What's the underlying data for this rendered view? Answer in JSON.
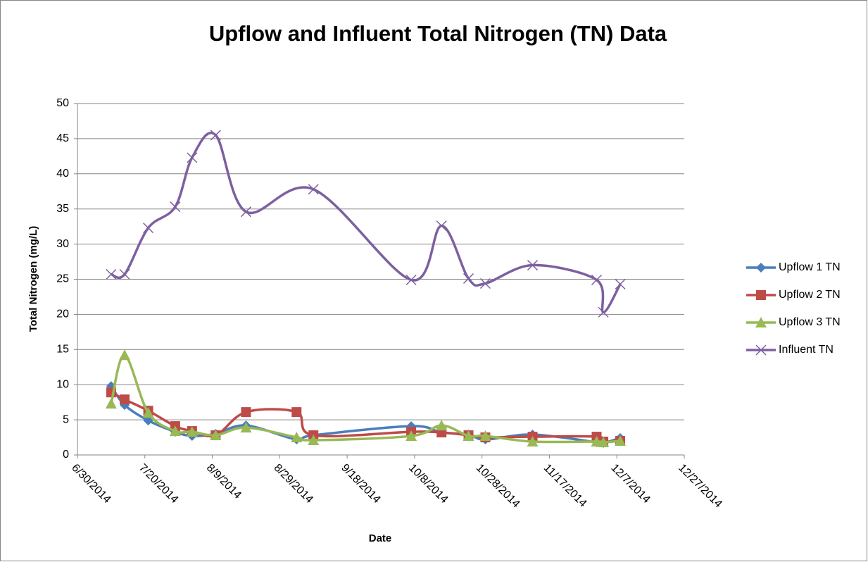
{
  "chart_data": {
    "type": "line",
    "title": "Upflow and Influent Total Nitrogen (TN) Data",
    "xlabel": "Date",
    "ylabel": "Total Nitrogen (mg/L)",
    "xlim": [
      "2014-06-30",
      "2014-12-27"
    ],
    "xticks": [
      {
        "value": "2014-06-30",
        "label": "6/30/2014"
      },
      {
        "value": "2014-07-20",
        "label": "7/20/2014"
      },
      {
        "value": "2014-08-09",
        "label": "8/9/2014"
      },
      {
        "value": "2014-08-29",
        "label": "8/29/2014"
      },
      {
        "value": "2014-09-18",
        "label": "9/18/2014"
      },
      {
        "value": "2014-10-08",
        "label": "10/8/2014"
      },
      {
        "value": "2014-10-28",
        "label": "10/28/2014"
      },
      {
        "value": "2014-11-17",
        "label": "11/17/2014"
      },
      {
        "value": "2014-12-07",
        "label": "12/7/2014"
      },
      {
        "value": "2014-12-27",
        "label": "12/27/2014"
      }
    ],
    "ylim": [
      0,
      50
    ],
    "yticks": [
      0,
      5,
      10,
      15,
      20,
      25,
      30,
      35,
      40,
      45,
      50
    ],
    "grid": true,
    "legend": "right",
    "smooth": true,
    "series": [
      {
        "name": "Upflow 1 TN",
        "color": "#4a7ebb",
        "marker": "diamond",
        "x": [
          "2014-07-10",
          "2014-07-14",
          "2014-07-21",
          "2014-07-29",
          "2014-08-03",
          "2014-08-10",
          "2014-08-19",
          "2014-09-03",
          "2014-09-08",
          "2014-10-07",
          "2014-10-16",
          "2014-10-24",
          "2014-10-29",
          "2014-11-12",
          "2014-12-01",
          "2014-12-03",
          "2014-12-08"
        ],
        "values": [
          9.8,
          7.1,
          4.9,
          3.3,
          2.7,
          3.0,
          4.2,
          2.2,
          2.8,
          4.1,
          3.2,
          2.9,
          2.2,
          2.9,
          1.8,
          1.7,
          2.4
        ]
      },
      {
        "name": "Upflow 2 TN",
        "color": "#be4b48",
        "marker": "square",
        "x": [
          "2014-07-10",
          "2014-07-14",
          "2014-07-21",
          "2014-07-29",
          "2014-08-03",
          "2014-08-10",
          "2014-08-19",
          "2014-09-03",
          "2014-09-08",
          "2014-10-07",
          "2014-10-16",
          "2014-10-24",
          "2014-10-29",
          "2014-11-12",
          "2014-12-01",
          "2014-12-03",
          "2014-12-08"
        ],
        "values": [
          8.9,
          7.9,
          6.3,
          4.1,
          3.4,
          2.8,
          6.1,
          6.1,
          2.8,
          3.3,
          3.2,
          2.8,
          2.5,
          2.6,
          2.6,
          1.9,
          2.0
        ]
      },
      {
        "name": "Upflow 3 TN",
        "color": "#98b954",
        "marker": "triangle",
        "x": [
          "2014-07-10",
          "2014-07-14",
          "2014-07-21",
          "2014-07-29",
          "2014-08-03",
          "2014-08-10",
          "2014-08-19",
          "2014-09-03",
          "2014-09-08",
          "2014-10-07",
          "2014-10-16",
          "2014-10-24",
          "2014-10-29",
          "2014-11-12",
          "2014-12-01",
          "2014-12-03",
          "2014-12-08"
        ],
        "values": [
          7.3,
          14.2,
          6.0,
          3.4,
          3.3,
          2.8,
          3.9,
          2.5,
          2.1,
          2.7,
          4.2,
          2.7,
          2.7,
          1.9,
          1.9,
          1.8,
          2.0
        ]
      },
      {
        "name": "Influent TN",
        "color": "#7d60a0",
        "marker": "x",
        "x": [
          "2014-07-10",
          "2014-07-14",
          "2014-07-21",
          "2014-07-29",
          "2014-08-03",
          "2014-08-10",
          "2014-08-19",
          "2014-09-08",
          "2014-10-07",
          "2014-10-16",
          "2014-10-24",
          "2014-10-29",
          "2014-11-12",
          "2014-12-01",
          "2014-12-03",
          "2014-12-08"
        ],
        "values": [
          25.7,
          25.7,
          32.3,
          35.3,
          42.3,
          45.5,
          34.6,
          37.8,
          24.9,
          32.6,
          25.1,
          24.4,
          27.0,
          24.9,
          20.3,
          24.3
        ]
      }
    ]
  }
}
